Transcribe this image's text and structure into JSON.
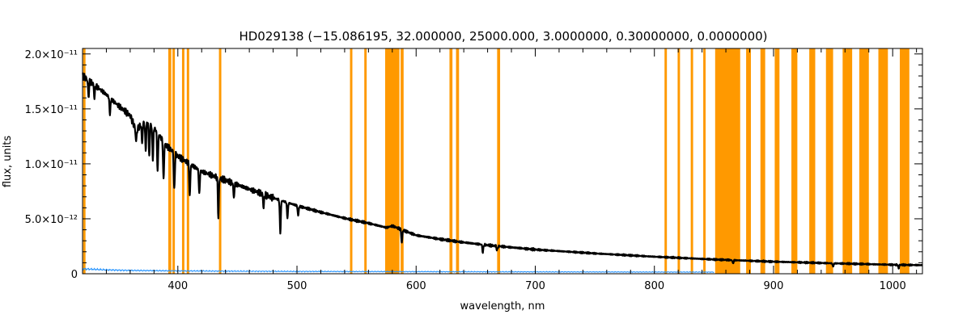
{
  "chart_data": {
    "type": "line",
    "title": "HD029138   (−15.086195, 32.000000, 25000.000, 3.0000000, 0.30000000, 0.0000000)",
    "xlabel": "wavelength, nm",
    "ylabel": "flux, units",
    "xlim": [
      320,
      1025
    ],
    "ylim": [
      0,
      2.05e-11
    ],
    "x_ticks": [
      400,
      500,
      600,
      700,
      800,
      900,
      1000
    ],
    "y_ticks": [
      {
        "value": 0,
        "label": "0"
      },
      {
        "value": 5e-12,
        "label": "5.0×10⁻¹²"
      },
      {
        "value": 1e-11,
        "label": "1.0×10⁻¹¹"
      },
      {
        "value": 1.5e-11,
        "label": "1.5×10⁻¹¹"
      },
      {
        "value": 2e-11,
        "label": "2.0×10⁻¹¹"
      }
    ],
    "colors": {
      "flux": "#000000",
      "error": "#1e90ff",
      "mask": "#ff9900"
    },
    "series": [
      {
        "role": "flux",
        "x": [
          320,
          330,
          340,
          350,
          360,
          365,
          370,
          375,
          380,
          390,
          400,
          420,
          440,
          460,
          480,
          500,
          520,
          540,
          560,
          575,
          580,
          600,
          620,
          640,
          660,
          680,
          700,
          750,
          800,
          850,
          900,
          950,
          1000,
          1025
        ],
        "y": [
          1.8e-11,
          1.72e-11,
          1.63e-11,
          1.53e-11,
          1.44e-11,
          1.3e-11,
          1.37e-11,
          1.38e-11,
          1.33e-11,
          1.17e-11,
          1.07e-11,
          9.3e-12,
          8.5e-12,
          7.7e-12,
          6.9e-12,
          6.2e-12,
          5.6e-12,
          5.05e-12,
          4.6e-12,
          4.2e-12,
          4.35e-12,
          3.5e-12,
          3.15e-12,
          2.85e-12,
          2.6e-12,
          2.4e-12,
          2.2e-12,
          1.85e-12,
          1.55e-12,
          1.3e-12,
          1.1e-12,
          9.5e-13,
          8.2e-13,
          7.8e-13
        ]
      },
      {
        "role": "error",
        "x": [
          320,
          340,
          360,
          400,
          450,
          500,
          600,
          700,
          800,
          850
        ],
        "y": [
          4.5e-13,
          3.5e-13,
          3e-13,
          2.6e-13,
          2.3e-13,
          2.1e-13,
          1.9e-13,
          1.7e-13,
          1.55e-13,
          1.5e-13
        ]
      }
    ],
    "absorption_lines": [
      {
        "x": 325,
        "depth": 1.5e-12
      },
      {
        "x": 330,
        "depth": 1.2e-12
      },
      {
        "x": 343,
        "depth": 1.5e-12
      },
      {
        "x": 365,
        "depth": 1e-12
      },
      {
        "x": 370,
        "depth": 1.8e-12
      },
      {
        "x": 373,
        "depth": 2.5e-12
      },
      {
        "x": 376,
        "depth": 3e-12
      },
      {
        "x": 379,
        "depth": 3e-12
      },
      {
        "x": 383,
        "depth": 3.5e-12
      },
      {
        "x": 388,
        "depth": 3.5e-12
      },
      {
        "x": 397,
        "depth": 3.5e-12
      },
      {
        "x": 410,
        "depth": 3e-12
      },
      {
        "x": 418,
        "depth": 2.2e-12
      },
      {
        "x": 434,
        "depth": 3.5e-12
      },
      {
        "x": 447,
        "depth": 1.3e-12
      },
      {
        "x": 472,
        "depth": 1.2e-12
      },
      {
        "x": 486,
        "depth": 3e-12
      },
      {
        "x": 492,
        "depth": 1.4e-12
      },
      {
        "x": 501,
        "depth": 9e-13
      },
      {
        "x": 588,
        "depth": 1.2e-12
      },
      {
        "x": 656,
        "depth": 7e-13
      },
      {
        "x": 668,
        "depth": 4e-13
      },
      {
        "x": 866,
        "depth": 3e-13
      },
      {
        "x": 950,
        "depth": 3e-13
      },
      {
        "x": 1005,
        "depth": 3e-13
      }
    ],
    "mask_bands": [
      [
        320.5,
        322.5
      ],
      [
        392,
        394.5
      ],
      [
        395.5,
        397.5
      ],
      [
        403.5,
        405.5
      ],
      [
        407.5,
        409.5
      ],
      [
        434.5,
        436.5
      ],
      [
        544.5,
        546.5
      ],
      [
        556.5,
        558.5
      ],
      [
        574,
        586
      ],
      [
        587,
        589.5
      ],
      [
        628,
        630.5
      ],
      [
        633.5,
        636
      ],
      [
        668,
        670.5
      ],
      [
        808.5,
        810.5
      ],
      [
        819.5,
        821.5
      ],
      [
        830.5,
        832.5
      ],
      [
        841,
        843
      ],
      [
        851,
        872
      ],
      [
        877,
        881
      ],
      [
        889,
        893
      ],
      [
        901,
        905
      ],
      [
        915,
        920
      ],
      [
        930,
        935
      ],
      [
        944,
        950
      ],
      [
        958,
        966
      ],
      [
        972,
        980
      ],
      [
        988,
        996
      ],
      [
        1006,
        1014
      ]
    ]
  }
}
